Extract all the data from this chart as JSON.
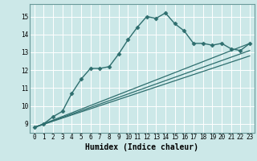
{
  "title": "",
  "xlabel": "Humidex (Indice chaleur)",
  "ylabel": "",
  "bg_color": "#cce8e8",
  "grid_color": "#ffffff",
  "line_color": "#2e6e6e",
  "xmin": -0.5,
  "xmax": 23.5,
  "ymin": 8.5,
  "ymax": 15.7,
  "series": [
    {
      "x": [
        0,
        1,
        2,
        3,
        4,
        5,
        6,
        7,
        8,
        9,
        10,
        11,
        12,
        13,
        14,
        15,
        16,
        17,
        18,
        19,
        20,
        21,
        22,
        23
      ],
      "y": [
        8.8,
        9.0,
        9.4,
        9.7,
        10.7,
        11.5,
        12.1,
        12.1,
        12.2,
        12.9,
        13.7,
        14.4,
        15.0,
        14.9,
        15.2,
        14.6,
        14.2,
        13.5,
        13.5,
        13.4,
        13.5,
        13.2,
        13.1,
        13.5
      ],
      "marker": "D",
      "markersize": 2.5,
      "linewidth": 1.0
    },
    {
      "x": [
        0,
        23
      ],
      "y": [
        8.8,
        13.5
      ],
      "marker": null,
      "linewidth": 0.9
    },
    {
      "x": [
        0,
        23
      ],
      "y": [
        8.8,
        13.1
      ],
      "marker": null,
      "linewidth": 0.9
    },
    {
      "x": [
        0,
        23
      ],
      "y": [
        8.8,
        12.8
      ],
      "marker": null,
      "linewidth": 0.9
    }
  ],
  "yticks": [
    9,
    10,
    11,
    12,
    13,
    14,
    15
  ],
  "xticks": [
    0,
    1,
    2,
    3,
    4,
    5,
    6,
    7,
    8,
    9,
    10,
    11,
    12,
    13,
    14,
    15,
    16,
    17,
    18,
    19,
    20,
    21,
    22,
    23
  ],
  "tick_fontsize": 5.5,
  "xlabel_fontsize": 7.0
}
